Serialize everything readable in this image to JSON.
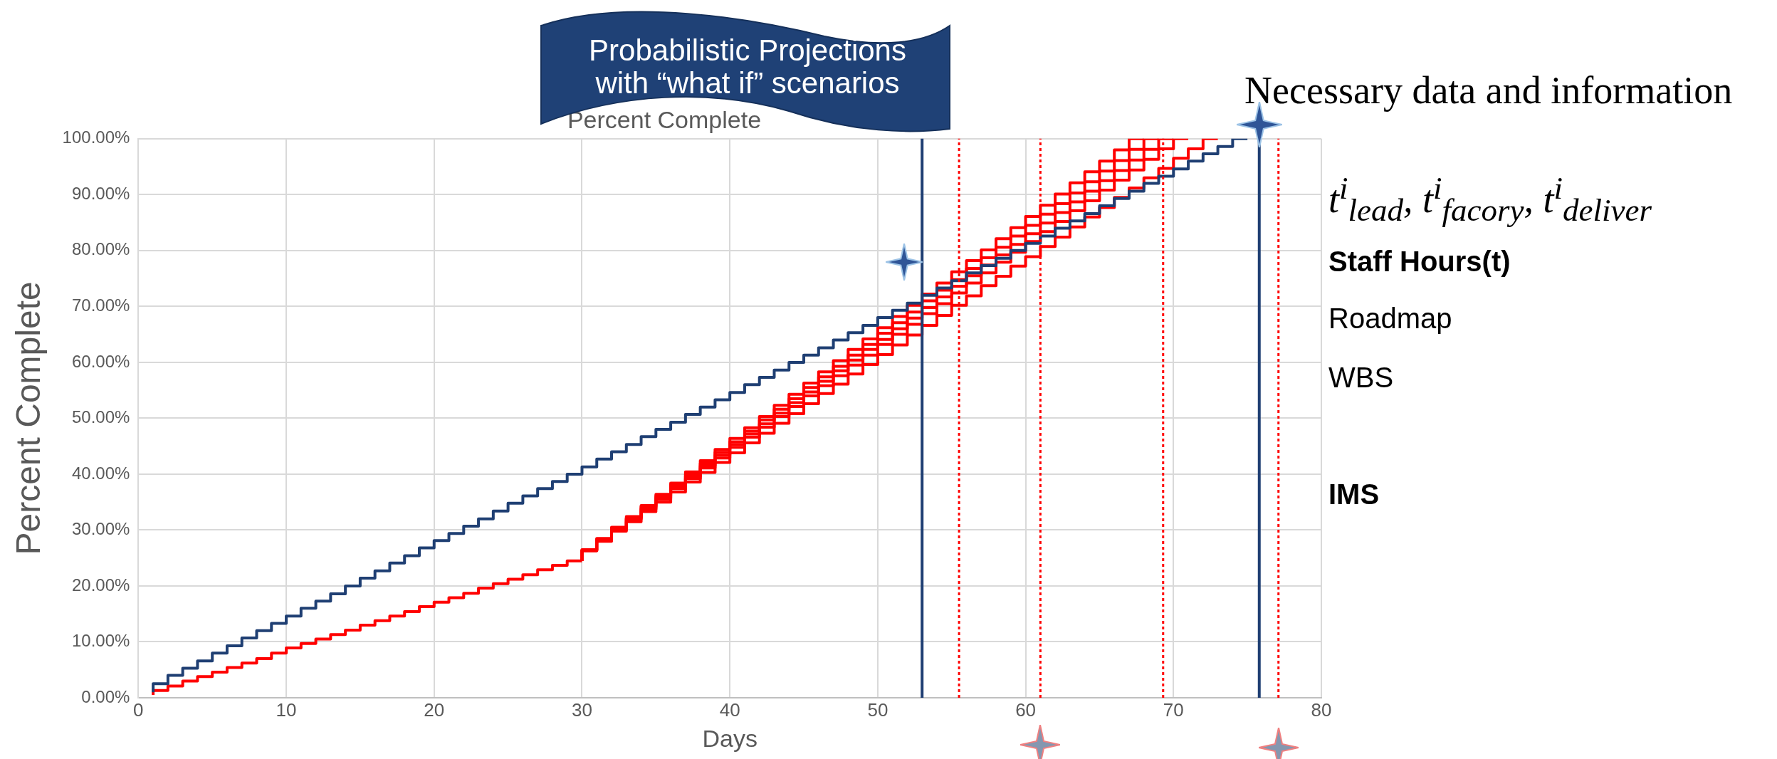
{
  "chart_data": {
    "type": "step",
    "title": "Percent Complete",
    "xlabel": "Days",
    "ylabel": "Percent Complete",
    "annotations": [
      "Probabilistic Projections with “what if” scenarios",
      "Necessary data and information",
      "t$^{i}$$_{lead}$, t$^{i}$$_{facory}$, t$^{i}$$_{deliver}$",
      "Staff Hours(t)",
      "Roadmap",
      "WBS",
      "IMS"
    ],
    "xlim": [
      0,
      80
    ],
    "xticks": [
      0,
      10,
      20,
      30,
      40,
      50,
      60,
      70,
      80
    ],
    "ylim": [
      0,
      100
    ],
    "yticks": [
      {
        "value": 0,
        "label": "0.00%"
      },
      {
        "value": 10,
        "label": "10.00%"
      },
      {
        "value": 20,
        "label": "20.00%"
      },
      {
        "value": 30,
        "label": "30.00%"
      },
      {
        "value": 40,
        "label": "40.00%"
      },
      {
        "value": 50,
        "label": "50.00%"
      },
      {
        "value": 60,
        "label": "60.00%"
      },
      {
        "value": 70,
        "label": "70.00%"
      },
      {
        "value": 80,
        "label": "80.00%"
      },
      {
        "value": 90,
        "label": "90.00%"
      },
      {
        "value": 100,
        "label": "100.00%"
      }
    ],
    "grid": true,
    "marker": "none",
    "series": [
      {
        "color": "#1f3f73",
        "x": [
          1,
          2,
          3,
          4,
          5,
          6,
          7,
          8,
          9,
          10,
          11,
          12,
          13,
          14,
          15,
          16,
          17,
          18,
          19,
          20,
          21,
          22,
          23,
          24,
          25,
          26,
          27,
          28,
          29,
          30,
          31,
          32,
          33,
          34,
          35,
          36,
          37,
          38,
          39,
          40,
          41,
          42,
          43,
          44,
          45,
          46,
          47,
          48,
          49,
          50,
          51,
          52,
          53,
          54,
          55,
          56,
          57,
          58,
          59,
          60,
          61,
          62,
          63,
          64,
          65,
          66,
          67,
          68,
          69,
          70,
          71,
          72,
          73,
          74,
          75
        ],
        "values": [
          1.0,
          2.5,
          4.0,
          5.3,
          6.6,
          8.0,
          9.3,
          10.7,
          12.0,
          13.3,
          14.6,
          16.0,
          17.3,
          18.6,
          20.0,
          21.4,
          22.7,
          24.1,
          25.4,
          26.8,
          28.1,
          29.4,
          30.7,
          32.0,
          33.4,
          34.8,
          36.1,
          37.4,
          38.7,
          40.0,
          41.3,
          42.7,
          44.0,
          45.3,
          46.7,
          48.0,
          49.3,
          50.7,
          52.0,
          53.3,
          54.6,
          56.0,
          57.3,
          58.6,
          60.0,
          61.3,
          62.6,
          64.0,
          65.3,
          66.6,
          68.0,
          69.3,
          70.6,
          72.0,
          73.3,
          74.6,
          76.0,
          77.3,
          78.6,
          80.0,
          81.3,
          82.6,
          84.0,
          85.3,
          86.6,
          88.0,
          89.3,
          90.6,
          92.0,
          93.3,
          94.6,
          96.0,
          97.3,
          98.6,
          100
        ]
      },
      {
        "color": "#ff0000",
        "x": [
          1,
          2,
          3,
          4,
          5,
          6,
          7,
          8,
          9,
          10,
          11,
          12,
          13,
          14,
          15,
          16,
          17,
          18,
          19,
          20,
          21,
          22,
          23,
          24,
          25,
          26,
          27,
          28,
          29,
          30
        ],
        "values": [
          0.5,
          1.3,
          2.1,
          3.0,
          3.8,
          4.6,
          5.4,
          6.2,
          7.0,
          8.0,
          8.9,
          9.7,
          10.5,
          11.3,
          12.1,
          13.0,
          13.8,
          14.6,
          15.4,
          16.3,
          17.1,
          17.9,
          18.7,
          19.6,
          20.4,
          21.2,
          22.0,
          22.9,
          23.7,
          24.5
        ]
      },
      {
        "color": "#ff0000",
        "x": [
          30,
          31,
          32,
          33,
          34,
          35,
          36,
          37,
          38,
          39,
          40,
          41,
          42,
          43,
          44,
          45,
          46,
          47,
          48,
          49,
          50,
          51,
          52,
          53,
          54,
          55,
          56,
          57,
          58,
          59,
          60,
          61,
          62,
          63,
          64,
          65,
          66,
          67,
          68
        ],
        "values": [
          24.5,
          26.5,
          28.5,
          30.5,
          32.4,
          34.4,
          36.4,
          38.4,
          40.4,
          42.4,
          44.4,
          46.4,
          48.3,
          50.3,
          52.3,
          54.3,
          56.3,
          58.3,
          60.3,
          62.3,
          64.2,
          66.2,
          68.2,
          70.2,
          72.2,
          74.2,
          76.2,
          78.2,
          80.1,
          82.1,
          84.1,
          86.1,
          88.1,
          90.1,
          92.1,
          94.1,
          96.0,
          98.0,
          100
        ]
      },
      {
        "color": "#ff0000",
        "x": [
          30,
          31,
          32,
          33,
          34,
          35,
          36,
          37,
          38,
          39,
          40,
          41,
          42,
          43,
          44,
          45,
          46,
          47,
          48,
          49,
          50,
          51,
          52,
          53,
          54,
          55,
          56,
          57,
          58,
          59,
          60,
          61,
          62,
          63,
          64,
          65,
          66,
          67,
          68,
          69
        ],
        "values": [
          24.5,
          26.4,
          28.4,
          30.3,
          32.2,
          34.2,
          36.1,
          38.1,
          40.0,
          41.9,
          43.9,
          45.8,
          47.7,
          49.7,
          51.6,
          53.5,
          55.5,
          57.4,
          59.3,
          61.3,
          63.2,
          65.2,
          67.1,
          69.0,
          71.0,
          72.9,
          74.8,
          76.8,
          78.7,
          80.6,
          82.6,
          84.5,
          86.5,
          88.4,
          90.3,
          92.3,
          94.2,
          96.1,
          98.1,
          100
        ]
      },
      {
        "color": "#ff0000",
        "x": [
          30,
          31,
          32,
          33,
          34,
          35,
          36,
          37,
          38,
          39,
          40,
          41,
          42,
          43,
          44,
          45,
          46,
          47,
          48,
          49,
          50,
          51,
          52,
          53,
          54,
          55,
          56,
          57,
          58,
          59,
          60,
          61,
          62,
          63,
          64,
          65,
          66,
          67,
          68,
          69,
          70
        ],
        "values": [
          24.5,
          26.4,
          28.3,
          30.2,
          32.1,
          33.9,
          35.8,
          37.7,
          39.6,
          41.5,
          43.4,
          45.3,
          47.2,
          49.0,
          50.9,
          52.8,
          54.7,
          56.6,
          58.5,
          60.4,
          62.3,
          64.1,
          66.0,
          67.9,
          69.8,
          71.7,
          73.6,
          75.5,
          77.4,
          79.2,
          81.1,
          83.0,
          84.9,
          86.8,
          88.7,
          90.6,
          92.5,
          94.3,
          96.2,
          98.1,
          100
        ]
      },
      {
        "color": "#ff0000",
        "x": [
          30,
          31,
          32,
          33,
          34,
          35,
          36,
          37,
          38,
          39,
          40,
          41,
          42,
          43,
          44,
          45,
          46,
          47,
          48,
          49,
          50,
          51,
          52,
          53,
          54,
          55,
          56,
          57,
          58,
          59,
          60,
          61,
          62,
          63,
          64,
          65,
          66,
          67,
          68,
          69,
          70,
          71
        ],
        "values": [
          24.5,
          26.3,
          28.2,
          30.0,
          31.9,
          33.7,
          35.5,
          37.4,
          39.2,
          41.1,
          42.9,
          44.8,
          46.6,
          48.4,
          50.3,
          52.1,
          54.0,
          55.8,
          57.6,
          59.5,
          61.3,
          63.2,
          65.0,
          66.8,
          68.7,
          70.5,
          72.4,
          74.2,
          76.0,
          77.9,
          79.7,
          81.6,
          83.4,
          85.2,
          87.1,
          88.9,
          90.8,
          92.6,
          94.4,
          96.3,
          98.2,
          100
        ]
      },
      {
        "color": "#ff0000",
        "x": [
          30,
          31,
          32,
          33,
          34,
          35,
          36,
          37,
          38,
          39,
          40,
          41,
          42,
          43,
          44,
          45,
          46,
          47,
          48,
          49,
          50,
          51,
          52,
          53,
          54,
          55,
          56,
          57,
          58,
          59,
          60,
          61,
          62,
          63,
          64,
          65,
          66,
          67,
          68,
          69,
          70,
          71,
          72,
          73
        ],
        "values": [
          24.5,
          26.3,
          28.0,
          29.8,
          31.5,
          33.3,
          35.0,
          36.8,
          38.6,
          40.3,
          42.1,
          43.8,
          45.6,
          47.3,
          49.1,
          50.8,
          52.6,
          54.4,
          56.1,
          57.9,
          59.6,
          61.4,
          63.1,
          64.9,
          66.6,
          68.4,
          70.2,
          71.9,
          73.7,
          75.4,
          77.2,
          78.9,
          80.7,
          82.4,
          84.2,
          86.0,
          87.7,
          89.5,
          91.2,
          93.0,
          94.7,
          96.5,
          98.2,
          100
        ]
      }
    ],
    "ref_lines": [
      {
        "axis": "x",
        "value": 53,
        "color": "#1f3f73",
        "line_style": "solid"
      },
      {
        "axis": "x",
        "value": 55.5,
        "color": "#ff0000",
        "line_style": "dotted"
      },
      {
        "axis": "x",
        "value": 61,
        "color": "#ff0000",
        "line_style": "dotted"
      },
      {
        "axis": "x",
        "value": 69.3,
        "color": "#ff0000",
        "line_style": "dotted"
      },
      {
        "axis": "x",
        "value": 75.8,
        "color": "#1f3f73",
        "line_style": "solid"
      },
      {
        "axis": "x",
        "value": 77.1,
        "color": "#ff0000",
        "line_style": "dotted"
      }
    ]
  }
}
